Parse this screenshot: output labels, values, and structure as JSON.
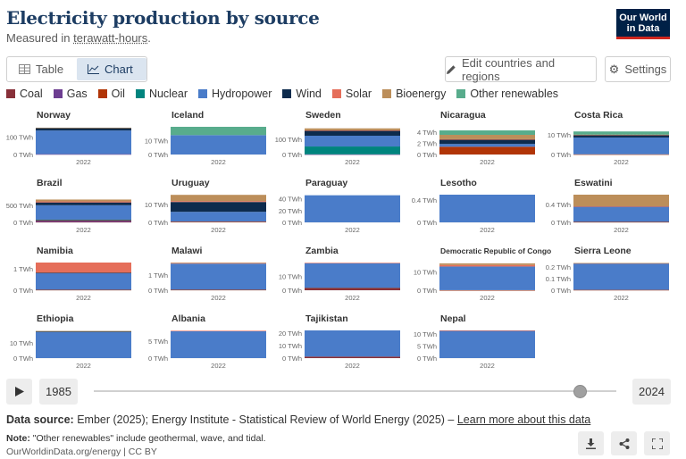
{
  "title": "Electricity production by source",
  "subtitle_prefix": "Measured in ",
  "subtitle_unit": "terawatt-hours",
  "subtitle_suffix": ".",
  "logo": {
    "line1": "Our World",
    "line2": "in Data"
  },
  "tabs": {
    "table": "Table",
    "chart": "Chart"
  },
  "edit_label": "Edit countries and regions",
  "settings_label": "Settings",
  "colors": {
    "Coal": "#883039",
    "Gas": "#6d3e91",
    "Oil": "#b13507",
    "Nuclear": "#00847e",
    "Hydropower": "#4c6a9c",
    "Wind": "#0d2b4d",
    "Solar": "#e56e5a",
    "Bioenergy": "#bc8e5a",
    "Other renewables": "#58ac8c"
  },
  "chart_data": {
    "type": "area",
    "title": "Electricity production by source",
    "unit": "TWh",
    "sources": [
      "Coal",
      "Gas",
      "Oil",
      "Nuclear",
      "Hydropower",
      "Wind",
      "Solar",
      "Bioenergy",
      "Other renewables"
    ],
    "legend_colors": [
      "#883039",
      "#6d3e91",
      "#b13507",
      "#00847e",
      "#4a7cc9",
      "#0d2b4d",
      "#e56e5a",
      "#bc8e5a",
      "#58ac8c"
    ],
    "year_tick": "2022",
    "panels": [
      {
        "name": "Norway",
        "ymax": 160,
        "ticks": [
          {
            "v": 100,
            "l": "100 TWh"
          },
          {
            "v": 0,
            "l": "0 TWh"
          }
        ],
        "values": {
          "Coal": 0,
          "Gas": 2,
          "Oil": 0,
          "Nuclear": 0,
          "Hydropower": 137,
          "Wind": 15,
          "Solar": 0,
          "Bioenergy": 0.5,
          "Other renewables": 0
        }
      },
      {
        "name": "Iceland",
        "ymax": 20,
        "ticks": [
          {
            "v": 10,
            "l": "10 TWh"
          },
          {
            "v": 0,
            "l": "0 TWh"
          }
        ],
        "values": {
          "Coal": 0,
          "Gas": 0,
          "Oil": 0,
          "Nuclear": 0,
          "Hydropower": 14,
          "Wind": 0,
          "Solar": 0,
          "Bioenergy": 0,
          "Other renewables": 6
        }
      },
      {
        "name": "Sweden",
        "ymax": 180,
        "ticks": [
          {
            "v": 100,
            "l": "100 TWh"
          },
          {
            "v": 0,
            "l": "0 TWh"
          }
        ],
        "values": {
          "Coal": 0,
          "Gas": 1,
          "Oil": 0,
          "Nuclear": 51,
          "Hydropower": 70,
          "Wind": 33,
          "Solar": 2,
          "Bioenergy": 13,
          "Other renewables": 0
        }
      },
      {
        "name": "Nicaragua",
        "ymax": 5,
        "ticks": [
          {
            "v": 4,
            "l": "4 TWh"
          },
          {
            "v": 2,
            "l": "2 TWh"
          },
          {
            "v": 0,
            "l": "0 TWh"
          }
        ],
        "values": {
          "Coal": 0,
          "Gas": 0,
          "Oil": 1.4,
          "Nuclear": 0,
          "Hydropower": 0.5,
          "Wind": 0.8,
          "Solar": 0.05,
          "Bioenergy": 0.8,
          "Other renewables": 0.8
        }
      },
      {
        "name": "Costa Rica",
        "ymax": 14,
        "ticks": [
          {
            "v": 10,
            "l": "10 TWh"
          },
          {
            "v": 0,
            "l": "0 TWh"
          }
        ],
        "values": {
          "Coal": 0,
          "Gas": 0,
          "Oil": 0.1,
          "Nuclear": 0,
          "Hydropower": 8.5,
          "Wind": 1.3,
          "Solar": 0.05,
          "Bioenergy": 0.1,
          "Other renewables": 1.6
        }
      },
      {
        "name": "Brazil",
        "ymax": 820,
        "ticks": [
          {
            "v": 500,
            "l": "500 TWh"
          },
          {
            "v": 0,
            "l": "0 TWh"
          }
        ],
        "values": {
          "Coal": 14,
          "Gas": 42,
          "Oil": 9,
          "Nuclear": 15,
          "Hydropower": 428,
          "Wind": 82,
          "Solar": 30,
          "Bioenergy": 56,
          "Other renewables": 0
        }
      },
      {
        "name": "Uruguay",
        "ymax": 15.5,
        "ticks": [
          {
            "v": 10,
            "l": "10 TWh"
          },
          {
            "v": 0,
            "l": "0 TWh"
          }
        ],
        "values": {
          "Coal": 0,
          "Gas": 0,
          "Oil": 0.4,
          "Nuclear": 0,
          "Hydropower": 5.5,
          "Wind": 5.5,
          "Solar": 0.5,
          "Bioenergy": 3.5,
          "Other renewables": 0
        }
      },
      {
        "name": "Paraguay",
        "ymax": 47,
        "ticks": [
          {
            "v": 40,
            "l": "40 TWh"
          },
          {
            "v": 20,
            "l": "20 TWh"
          },
          {
            "v": 0,
            "l": "0 TWh"
          }
        ],
        "values": {
          "Coal": 0,
          "Gas": 0,
          "Oil": 0,
          "Nuclear": 0,
          "Hydropower": 46,
          "Wind": 0,
          "Solar": 0,
          "Bioenergy": 0,
          "Other renewables": 0
        }
      },
      {
        "name": "Lesotho",
        "ymax": 0.5,
        "ticks": [
          {
            "v": 0.4,
            "l": "0.4 TWh"
          },
          {
            "v": 0,
            "l": "0 TWh"
          }
        ],
        "values": {
          "Coal": 0,
          "Gas": 0,
          "Oil": 0,
          "Nuclear": 0,
          "Hydropower": 0.5,
          "Wind": 0,
          "Solar": 0,
          "Bioenergy": 0,
          "Other renewables": 0
        }
      },
      {
        "name": "Eswatini",
        "ymax": 0.62,
        "ticks": [
          {
            "v": 0.4,
            "l": "0.4 TWh"
          },
          {
            "v": 0,
            "l": "0 TWh"
          }
        ],
        "values": {
          "Coal": 0,
          "Gas": 0,
          "Oil": 0.01,
          "Nuclear": 0,
          "Hydropower": 0.34,
          "Wind": 0,
          "Solar": 0.01,
          "Bioenergy": 0.26,
          "Other renewables": 0
        }
      },
      {
        "name": "Namibia",
        "ymax": 1.3,
        "ticks": [
          {
            "v": 1,
            "l": "1 TWh"
          },
          {
            "v": 0,
            "l": "0 TWh"
          }
        ],
        "values": {
          "Coal": 0,
          "Gas": 0,
          "Oil": 0.02,
          "Nuclear": 0,
          "Hydropower": 0.78,
          "Wind": 0.02,
          "Solar": 0.48,
          "Bioenergy": 0,
          "Other renewables": 0
        }
      },
      {
        "name": "Malawi",
        "ymax": 1.8,
        "ticks": [
          {
            "v": 1,
            "l": "1 TWh"
          },
          {
            "v": 0,
            "l": "0 TWh"
          }
        ],
        "values": {
          "Coal": 0,
          "Gas": 0,
          "Oil": 0.03,
          "Nuclear": 0,
          "Hydropower": 1.7,
          "Wind": 0,
          "Solar": 0.05,
          "Bioenergy": 0.01,
          "Other renewables": 0
        }
      },
      {
        "name": "Zambia",
        "ymax": 20,
        "ticks": [
          {
            "v": 10,
            "l": "10 TWh"
          },
          {
            "v": 0,
            "l": "0 TWh"
          }
        ],
        "values": {
          "Coal": 1.5,
          "Gas": 0,
          "Oil": 0.1,
          "Nuclear": 0,
          "Hydropower": 18,
          "Wind": 0,
          "Solar": 0.2,
          "Bioenergy": 0,
          "Other renewables": 0
        }
      },
      {
        "name": "Democratic Republic of Congo",
        "ymax": 15,
        "ticks": [
          {
            "v": 10,
            "l": "10 TWh"
          },
          {
            "v": 0,
            "l": "0 TWh"
          }
        ],
        "values": {
          "Coal": 0,
          "Gas": 0,
          "Oil": 0.05,
          "Nuclear": 0,
          "Hydropower": 12.8,
          "Wind": 0,
          "Solar": 0.8,
          "Bioenergy": 0.9,
          "Other renewables": 0
        }
      },
      {
        "name": "Sierra Leone",
        "ymax": 0.24,
        "ticks": [
          {
            "v": 0.2,
            "l": "0.2 TWh"
          },
          {
            "v": 0.1,
            "l": "0.1 TWh"
          },
          {
            "v": 0,
            "l": "0 TWh"
          }
        ],
        "values": {
          "Coal": 0,
          "Gas": 0,
          "Oil": 0.003,
          "Nuclear": 0,
          "Hydropower": 0.23,
          "Wind": 0,
          "Solar": 0.002,
          "Bioenergy": 0.001,
          "Other renewables": 0
        }
      },
      {
        "name": "Ethiopia",
        "ymax": 18.5,
        "ticks": [
          {
            "v": 10,
            "l": "10 TWh"
          },
          {
            "v": 0,
            "l": "0 TWh"
          }
        ],
        "values": {
          "Coal": 0,
          "Gas": 0,
          "Oil": 0,
          "Nuclear": 0,
          "Hydropower": 17.4,
          "Wind": 0.6,
          "Solar": 0,
          "Bioenergy": 0.1,
          "Other renewables": 0
        }
      },
      {
        "name": "Albania",
        "ymax": 8.1,
        "ticks": [
          {
            "v": 5,
            "l": "5 TWh"
          },
          {
            "v": 0,
            "l": "0 TWh"
          }
        ],
        "values": {
          "Coal": 0,
          "Gas": 0,
          "Oil": 0,
          "Nuclear": 0,
          "Hydropower": 7.9,
          "Wind": 0,
          "Solar": 0.1,
          "Bioenergy": 0,
          "Other renewables": 0
        }
      },
      {
        "name": "Tajikistan",
        "ymax": 22,
        "ticks": [
          {
            "v": 20,
            "l": "20 TWh"
          },
          {
            "v": 10,
            "l": "10 TWh"
          },
          {
            "v": 0,
            "l": "0 TWh"
          }
        ],
        "values": {
          "Coal": 1.2,
          "Gas": 0,
          "Oil": 0,
          "Nuclear": 0,
          "Hydropower": 20.8,
          "Wind": 0,
          "Solar": 0,
          "Bioenergy": 0,
          "Other renewables": 0
        }
      },
      {
        "name": "Nepal",
        "ymax": 11.5,
        "ticks": [
          {
            "v": 10,
            "l": "10 TWh"
          },
          {
            "v": 5,
            "l": "5 TWh"
          },
          {
            "v": 0,
            "l": "0 TWh"
          }
        ],
        "values": {
          "Coal": 0,
          "Gas": 0,
          "Oil": 0,
          "Nuclear": 0,
          "Hydropower": 11.4,
          "Wind": 0,
          "Solar": 0.1,
          "Bioenergy": 0,
          "Other renewables": 0
        }
      }
    ]
  },
  "timeline": {
    "start_year": "1985",
    "end_year": "2024",
    "position": 0.93
  },
  "source_label": "Data source:",
  "source_text": " Ember (2025); Energy Institute - Statistical Review of World Energy (2025) – ",
  "source_link": "Learn more about this data",
  "note_label": "Note:",
  "note_text": " \"Other renewables\" include geothermal, wave, and tidal.",
  "credit": "OurWorldinData.org/energy | CC BY"
}
